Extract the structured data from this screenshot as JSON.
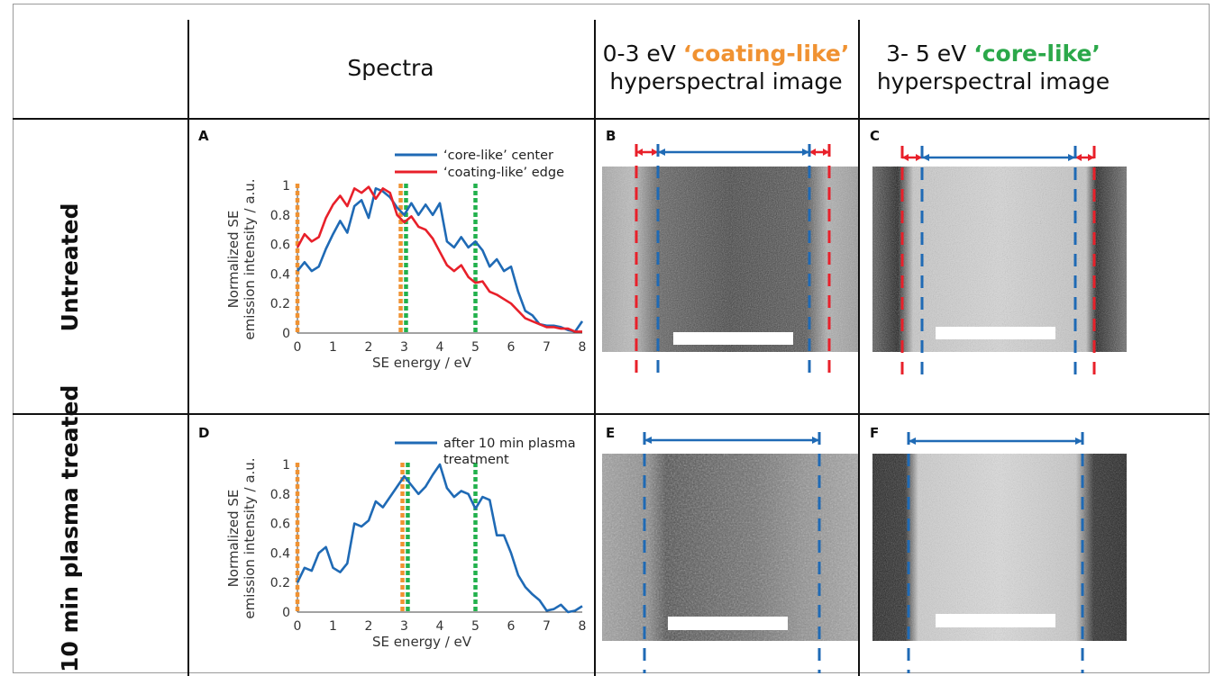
{
  "header": {
    "spectra": "Spectra",
    "col2_range": "0-3 eV",
    "col2_term": "‘coating-like’",
    "col2_sub": "hyperspectral image",
    "col3_range": "3- 5 eV",
    "col3_term": "‘core-like’",
    "col3_sub": "hyperspectral image"
  },
  "rows": {
    "row1": "Untreated",
    "row2": "10 min plasma treated"
  },
  "panels": {
    "A": "A",
    "B": "B",
    "C": "C",
    "D": "D",
    "E": "E",
    "F": "F"
  },
  "colors": {
    "blue": "#1f6ab5",
    "red": "#e8202a",
    "orange": "#f09232",
    "green": "#22b14c"
  },
  "chart_data": [
    {
      "type": "line",
      "panel": "A",
      "xlabel": "SE energy / eV",
      "ylabel_line1": "Normalized SE",
      "ylabel_line2": "emission intensity / a.u.",
      "xlim": [
        0,
        8
      ],
      "ylim": [
        0,
        1
      ],
      "xticks": [
        "0",
        "1",
        "2",
        "3",
        "4",
        "5",
        "6",
        "7",
        "8"
      ],
      "yticks": [
        "0",
        "0.2",
        "0.4",
        "0.6",
        "0.8",
        "1"
      ],
      "markers_orange": [
        0,
        2.9
      ],
      "markers_green": [
        3.05,
        5
      ],
      "series": [
        {
          "name": "‘core-like’ center",
          "color": "#1f6ab5",
          "x": [
            0,
            0.2,
            0.4,
            0.6,
            0.8,
            1,
            1.2,
            1.4,
            1.6,
            1.8,
            2,
            2.2,
            2.4,
            2.6,
            2.8,
            3,
            3.2,
            3.4,
            3.6,
            3.8,
            4,
            4.2,
            4.4,
            4.6,
            4.8,
            5,
            5.2,
            5.4,
            5.6,
            5.8,
            6,
            6.2,
            6.4,
            6.6,
            6.8,
            7,
            7.2,
            7.4,
            7.6,
            7.8,
            8
          ],
          "y": [
            0.42,
            0.48,
            0.42,
            0.45,
            0.57,
            0.67,
            0.76,
            0.68,
            0.86,
            0.9,
            0.78,
            0.98,
            0.96,
            0.92,
            0.85,
            0.8,
            0.88,
            0.8,
            0.87,
            0.8,
            0.88,
            0.62,
            0.58,
            0.65,
            0.58,
            0.62,
            0.56,
            0.45,
            0.5,
            0.42,
            0.45,
            0.28,
            0.15,
            0.12,
            0.06,
            0.05,
            0.05,
            0.04,
            0.02,
            0.01,
            0.08
          ]
        },
        {
          "name": "‘coating-like’ edge",
          "color": "#e8202a",
          "x": [
            0,
            0.2,
            0.4,
            0.6,
            0.8,
            1,
            1.2,
            1.4,
            1.6,
            1.8,
            2,
            2.2,
            2.4,
            2.6,
            2.8,
            3,
            3.2,
            3.4,
            3.6,
            3.8,
            4,
            4.2,
            4.4,
            4.6,
            4.8,
            5,
            5.2,
            5.4,
            5.6,
            5.8,
            6,
            6.2,
            6.4,
            6.6,
            6.8,
            7,
            7.2,
            7.4,
            7.6,
            7.8,
            8
          ],
          "y": [
            0.58,
            0.67,
            0.62,
            0.65,
            0.78,
            0.87,
            0.93,
            0.86,
            0.98,
            0.95,
            0.99,
            0.91,
            0.98,
            0.95,
            0.8,
            0.75,
            0.79,
            0.72,
            0.7,
            0.64,
            0.55,
            0.46,
            0.42,
            0.46,
            0.38,
            0.34,
            0.35,
            0.28,
            0.26,
            0.23,
            0.2,
            0.15,
            0.1,
            0.08,
            0.06,
            0.04,
            0.04,
            0.03,
            0.03,
            0.01,
            0.01
          ]
        }
      ]
    },
    {
      "type": "line",
      "panel": "D",
      "xlabel": "SE energy / eV",
      "ylabel_line1": "Normalized SE",
      "ylabel_line2": "emission intensity / a.u.",
      "xlim": [
        0,
        8
      ],
      "ylim": [
        0,
        1
      ],
      "xticks": [
        "0",
        "1",
        "2",
        "3",
        "4",
        "5",
        "6",
        "7",
        "8"
      ],
      "yticks": [
        "0",
        "0.2",
        "0.4",
        "0.6",
        "0.8",
        "1"
      ],
      "markers_orange": [
        0,
        2.95
      ],
      "markers_green": [
        3.1,
        5
      ],
      "series": [
        {
          "name_line1": "after 10 min plasma",
          "name_line2": "treatment",
          "color": "#1f6ab5",
          "x": [
            0,
            0.2,
            0.4,
            0.6,
            0.8,
            1,
            1.2,
            1.4,
            1.6,
            1.8,
            2,
            2.2,
            2.4,
            2.6,
            2.8,
            3,
            3.2,
            3.4,
            3.6,
            3.8,
            4,
            4.2,
            4.4,
            4.6,
            4.8,
            5,
            5.2,
            5.4,
            5.6,
            5.8,
            6,
            6.2,
            6.4,
            6.6,
            6.8,
            7,
            7.2,
            7.4,
            7.6,
            7.8,
            8
          ],
          "y": [
            0.2,
            0.3,
            0.28,
            0.4,
            0.44,
            0.3,
            0.27,
            0.33,
            0.6,
            0.58,
            0.62,
            0.75,
            0.71,
            0.78,
            0.85,
            0.92,
            0.86,
            0.8,
            0.85,
            0.93,
            1.0,
            0.84,
            0.78,
            0.82,
            0.8,
            0.7,
            0.78,
            0.76,
            0.52,
            0.52,
            0.4,
            0.25,
            0.17,
            0.12,
            0.08,
            0.01,
            0.02,
            0.05,
            0.0,
            0.01,
            0.04
          ]
        }
      ]
    }
  ]
}
